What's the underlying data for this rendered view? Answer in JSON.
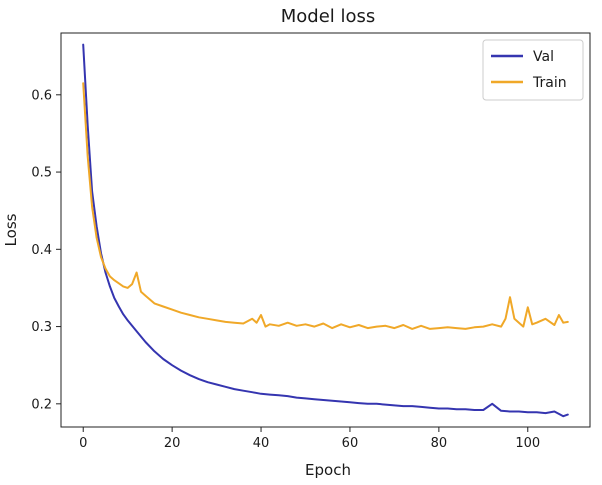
{
  "chart_data": {
    "type": "line",
    "title": "Model loss",
    "xlabel": "Epoch",
    "ylabel": "Loss",
    "xlim": [
      -5,
      114
    ],
    "ylim": [
      0.17,
      0.68
    ],
    "xticks": [
      0,
      20,
      40,
      60,
      80,
      100
    ],
    "yticks": [
      0.2,
      0.3,
      0.4,
      0.5,
      0.6
    ],
    "ytick_labels": [
      "0.2",
      "0.3",
      "0.4",
      "0.5",
      "0.6"
    ],
    "grid": false,
    "legend_position": "top-right",
    "series": [
      {
        "name": "Val",
        "color": "#3535b0",
        "x": [
          0,
          1,
          2,
          3,
          4,
          5,
          6,
          7,
          8,
          9,
          10,
          12,
          14,
          16,
          18,
          20,
          22,
          24,
          26,
          28,
          30,
          32,
          34,
          36,
          38,
          40,
          42,
          44,
          46,
          48,
          50,
          52,
          54,
          56,
          58,
          60,
          62,
          64,
          66,
          68,
          70,
          72,
          74,
          76,
          78,
          80,
          82,
          84,
          86,
          88,
          90,
          92,
          94,
          96,
          98,
          100,
          102,
          104,
          106,
          107,
          108,
          109
        ],
        "values": [
          0.665,
          0.56,
          0.475,
          0.43,
          0.395,
          0.37,
          0.352,
          0.337,
          0.326,
          0.316,
          0.308,
          0.294,
          0.28,
          0.268,
          0.258,
          0.25,
          0.243,
          0.237,
          0.232,
          0.228,
          0.225,
          0.222,
          0.219,
          0.217,
          0.215,
          0.213,
          0.212,
          0.211,
          0.21,
          0.208,
          0.207,
          0.206,
          0.205,
          0.204,
          0.203,
          0.202,
          0.201,
          0.2,
          0.2,
          0.199,
          0.198,
          0.197,
          0.197,
          0.196,
          0.195,
          0.194,
          0.194,
          0.193,
          0.193,
          0.192,
          0.192,
          0.2,
          0.191,
          0.19,
          0.19,
          0.189,
          0.189,
          0.188,
          0.19,
          0.187,
          0.184,
          0.186
        ]
      },
      {
        "name": "Train",
        "color": "#f0a828",
        "x": [
          0,
          1,
          2,
          3,
          4,
          5,
          6,
          7,
          8,
          9,
          10,
          11,
          12,
          13,
          14,
          16,
          18,
          20,
          22,
          24,
          26,
          28,
          30,
          32,
          34,
          36,
          38,
          39,
          40,
          41,
          42,
          44,
          46,
          48,
          50,
          52,
          54,
          56,
          58,
          60,
          62,
          64,
          66,
          68,
          70,
          72,
          74,
          76,
          78,
          80,
          82,
          84,
          86,
          88,
          90,
          92,
          94,
          95,
          96,
          97,
          98,
          99,
          100,
          101,
          102,
          104,
          106,
          107,
          108,
          109
        ],
        "values": [
          0.615,
          0.52,
          0.455,
          0.415,
          0.39,
          0.375,
          0.365,
          0.36,
          0.356,
          0.352,
          0.35,
          0.355,
          0.37,
          0.345,
          0.34,
          0.33,
          0.326,
          0.322,
          0.318,
          0.315,
          0.312,
          0.31,
          0.308,
          0.306,
          0.305,
          0.304,
          0.31,
          0.305,
          0.315,
          0.3,
          0.303,
          0.301,
          0.305,
          0.301,
          0.303,
          0.3,
          0.304,
          0.298,
          0.303,
          0.299,
          0.302,
          0.298,
          0.3,
          0.301,
          0.298,
          0.302,
          0.297,
          0.301,
          0.297,
          0.298,
          0.299,
          0.298,
          0.297,
          0.299,
          0.3,
          0.303,
          0.3,
          0.31,
          0.338,
          0.31,
          0.305,
          0.3,
          0.325,
          0.303,
          0.305,
          0.31,
          0.302,
          0.315,
          0.305,
          0.306
        ]
      }
    ]
  }
}
